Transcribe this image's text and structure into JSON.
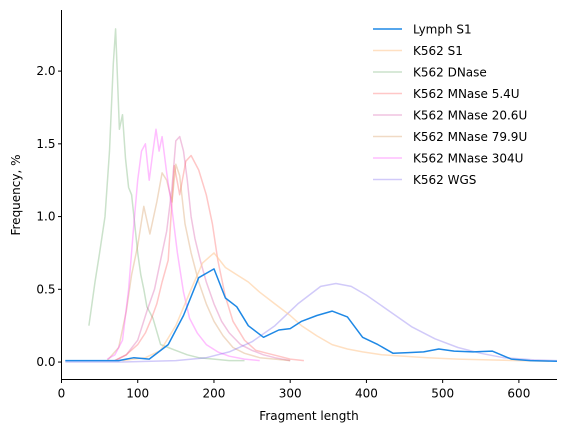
{
  "chart_data": {
    "type": "line",
    "title": "",
    "xlabel": "Fragment length",
    "ylabel": "Frequency, %",
    "xlim": [
      0,
      650
    ],
    "ylim": [
      -0.12,
      2.42
    ],
    "xticks": [
      0,
      100,
      200,
      300,
      400,
      500,
      600
    ],
    "yticks": [
      0.0,
      0.5,
      1.0,
      1.5,
      2.0
    ],
    "ytick_labels": [
      "0.0",
      "0.5",
      "1.0",
      "1.5",
      "2.0"
    ],
    "grid": false,
    "legend_position": "top-right",
    "series": [
      {
        "name": "Lymph S1",
        "color": "#1e88e5",
        "opacity": 1.0,
        "x": [
          5,
          30,
          60,
          75,
          95,
          115,
          140,
          160,
          180,
          200,
          215,
          230,
          245,
          265,
          285,
          300,
          315,
          335,
          355,
          375,
          395,
          415,
          435,
          455,
          475,
          495,
          515,
          540,
          565,
          590,
          615,
          650
        ],
        "y": [
          0.01,
          0.01,
          0.01,
          0.01,
          0.03,
          0.02,
          0.12,
          0.32,
          0.58,
          0.64,
          0.44,
          0.38,
          0.25,
          0.17,
          0.22,
          0.23,
          0.28,
          0.32,
          0.35,
          0.31,
          0.17,
          0.12,
          0.06,
          0.065,
          0.07,
          0.09,
          0.075,
          0.07,
          0.075,
          0.02,
          0.01,
          0.005
        ]
      },
      {
        "name": "K562 S1",
        "color": "#ffcc99",
        "opacity": 0.6,
        "x": [
          80,
          110,
          130,
          150,
          170,
          185,
          200,
          215,
          230,
          245,
          260,
          280,
          300,
          315,
          335,
          355,
          375,
          395,
          420,
          450,
          480,
          520,
          560,
          600,
          640
        ],
        "y": [
          0.01,
          0.03,
          0.08,
          0.25,
          0.5,
          0.68,
          0.75,
          0.65,
          0.6,
          0.55,
          0.48,
          0.4,
          0.32,
          0.25,
          0.18,
          0.12,
          0.09,
          0.07,
          0.05,
          0.04,
          0.03,
          0.02,
          0.015,
          0.01,
          0.005
        ]
      },
      {
        "name": "K562 DNase",
        "color": "#2e8b2e",
        "opacity": 0.25,
        "x": [
          36,
          44,
          50,
          57,
          63,
          68,
          71,
          76,
          80,
          84,
          88,
          92,
          96,
          100,
          104,
          108,
          112,
          120,
          130,
          140,
          150,
          165,
          180,
          200,
          220,
          240
        ],
        "y": [
          0.25,
          0.55,
          0.75,
          1.0,
          1.45,
          2.05,
          2.29,
          1.6,
          1.7,
          1.4,
          1.2,
          1.15,
          0.95,
          0.75,
          0.6,
          0.5,
          0.38,
          0.3,
          0.12,
          0.1,
          0.08,
          0.05,
          0.03,
          0.02,
          0.01,
          0.01
        ]
      },
      {
        "name": "K562 MNase 5.4U",
        "color": "#ff4444",
        "opacity": 0.3,
        "x": [
          70,
          85,
          100,
          110,
          118,
          125,
          132,
          140,
          148,
          155,
          163,
          170,
          180,
          190,
          198,
          205,
          215,
          225,
          240,
          255,
          270,
          285,
          300,
          318
        ],
        "y": [
          0.01,
          0.05,
          0.12,
          0.2,
          0.3,
          0.4,
          0.55,
          0.7,
          1.35,
          1.15,
          1.38,
          1.42,
          1.32,
          1.15,
          0.95,
          0.7,
          0.45,
          0.28,
          0.15,
          0.08,
          0.06,
          0.04,
          0.02,
          0.01
        ]
      },
      {
        "name": "K562 MNase 20.6U",
        "color": "#c71585",
        "opacity": 0.25,
        "x": [
          70,
          85,
          100,
          112,
          122,
          130,
          138,
          145,
          150,
          155,
          160,
          165,
          170,
          175,
          182,
          190,
          200,
          210,
          220,
          235,
          250,
          265,
          280,
          300
        ],
        "y": [
          0.01,
          0.05,
          0.15,
          0.35,
          0.5,
          0.7,
          0.9,
          1.2,
          1.52,
          1.55,
          1.45,
          1.25,
          1.0,
          0.85,
          0.7,
          0.55,
          0.4,
          0.28,
          0.2,
          0.12,
          0.08,
          0.05,
          0.03,
          0.01
        ]
      },
      {
        "name": "K562 MNase 79.9U",
        "color": "#cd853f",
        "opacity": 0.3,
        "x": [
          60,
          75,
          85,
          92,
          100,
          108,
          116,
          125,
          132,
          138,
          145,
          150,
          155,
          162,
          170,
          180,
          190,
          200,
          212,
          225,
          240,
          260,
          280,
          300
        ],
        "y": [
          0.01,
          0.1,
          0.35,
          0.6,
          0.8,
          1.07,
          0.88,
          1.1,
          1.3,
          1.25,
          1.1,
          1.36,
          1.28,
          0.95,
          0.75,
          0.55,
          0.4,
          0.28,
          0.18,
          0.1,
          0.06,
          0.03,
          0.02,
          0.01
        ]
      },
      {
        "name": "K562 MNase 304U",
        "color": "#ff44ff",
        "opacity": 0.35,
        "x": [
          60,
          70,
          80,
          88,
          95,
          100,
          105,
          110,
          115,
          120,
          124,
          128,
          132,
          138,
          145,
          152,
          160,
          168,
          178,
          190,
          205,
          220,
          240,
          260
        ],
        "y": [
          0.02,
          0.05,
          0.15,
          0.5,
          0.95,
          1.25,
          1.45,
          1.5,
          1.25,
          1.45,
          1.6,
          1.45,
          1.55,
          1.3,
          1.05,
          0.75,
          0.48,
          0.3,
          0.2,
          0.12,
          0.07,
          0.04,
          0.02,
          0.01
        ]
      },
      {
        "name": "K562 WGS",
        "color": "#7b68ee",
        "opacity": 0.35,
        "x": [
          5,
          80,
          150,
          190,
          220,
          250,
          280,
          310,
          340,
          360,
          380,
          400,
          430,
          460,
          490,
          520,
          550,
          580,
          620,
          650
        ],
        "y": [
          0.0,
          0.0,
          0.01,
          0.03,
          0.07,
          0.14,
          0.25,
          0.4,
          0.52,
          0.54,
          0.52,
          0.46,
          0.35,
          0.24,
          0.16,
          0.1,
          0.06,
          0.03,
          0.015,
          0.01
        ]
      }
    ]
  }
}
